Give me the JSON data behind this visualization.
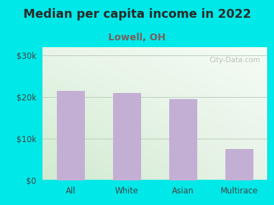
{
  "title": "Median per capita income in 2022",
  "subtitle": "Lowell, OH",
  "categories": [
    "All",
    "White",
    "Asian",
    "Multirace"
  ],
  "values": [
    21500,
    21000,
    19500,
    7500
  ],
  "bar_color": "#c4afd4",
  "title_fontsize": 12.5,
  "title_color": "#2a2a2a",
  "subtitle_fontsize": 10,
  "subtitle_color": "#7a6060",
  "background_outer": "#00e8e8",
  "ylim": [
    0,
    32000
  ],
  "yticks": [
    0,
    10000,
    20000,
    30000
  ],
  "ytick_labels": [
    "$0",
    "$10k",
    "$20k",
    "$30k"
  ],
  "watermark": "City-Data.com",
  "bg_top_left": "#e8f5e8",
  "bg_top_right": "#f5faf5",
  "bg_bottom_left": "#d0e8d0",
  "bg_bottom_right": "#e8f0e8"
}
